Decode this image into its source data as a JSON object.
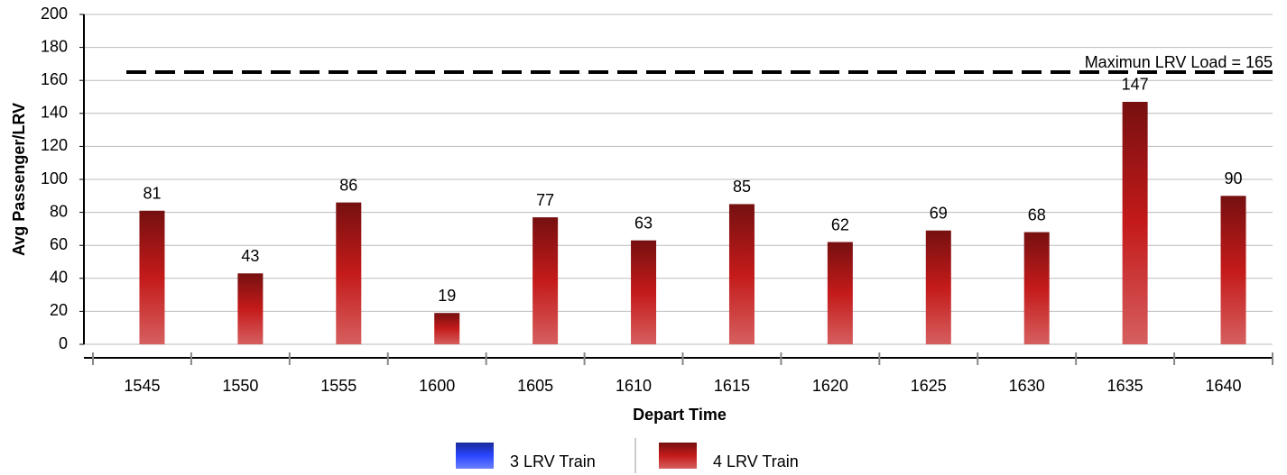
{
  "chart_data": {
    "type": "bar",
    "x_label": "Depart Time",
    "y_label": "Avg Passenger/LRV",
    "categories": [
      "1545",
      "1550",
      "1555",
      "1600",
      "1605",
      "1610",
      "1615",
      "1620",
      "1625",
      "1630",
      "1635",
      "1640"
    ],
    "series": [
      {
        "name": "3 LRV Train",
        "color": "#2a46ff",
        "values": [
          null,
          null,
          null,
          null,
          null,
          null,
          null,
          null,
          null,
          null,
          null,
          null
        ]
      },
      {
        "name": "4 LRV Train",
        "color": "#c41a1a",
        "values": [
          81,
          43,
          86,
          19,
          77,
          63,
          85,
          62,
          69,
          68,
          147,
          90
        ]
      }
    ],
    "reference_line": {
      "value": 165,
      "label": "Maximun LRV Load = 165"
    },
    "ylim": [
      0,
      200
    ],
    "yticks": [
      0,
      20,
      40,
      60,
      80,
      100,
      120,
      140,
      160,
      180,
      200
    ],
    "grid": true,
    "legend": "bottom"
  }
}
